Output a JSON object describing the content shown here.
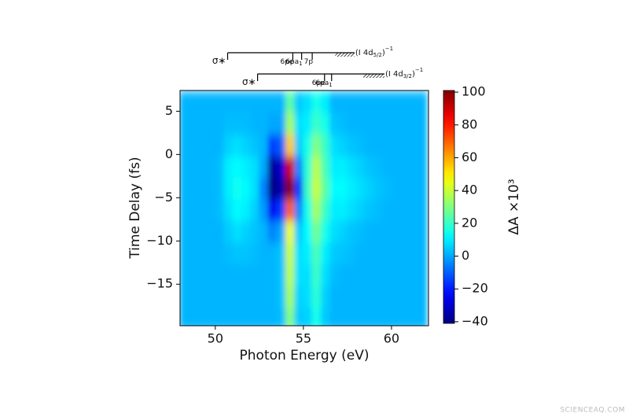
{
  "chart_data": {
    "type": "heatmap",
    "xlabel": "Photon Energy (eV)",
    "ylabel": "Time Delay (fs)",
    "colorbar_label": "ΔA ×10³",
    "colormap": "jet",
    "xlim": [
      48,
      62.1
    ],
    "ylim": [
      -19.8,
      7.4
    ],
    "xticks": [
      50,
      55,
      60
    ],
    "yticks": [
      5,
      0,
      {
        "value": -5,
        "label": "−5"
      },
      {
        "value": -10,
        "label": "−10"
      },
      {
        "value": -15,
        "label": "−15"
      }
    ],
    "clim": [
      -41,
      101
    ],
    "cticks": [
      {
        "value": -40,
        "label": "−40"
      },
      {
        "value": -20,
        "label": "−20"
      },
      0,
      20,
      40,
      60,
      80,
      100
    ],
    "x": [
      48.25,
      48.75,
      49.25,
      49.75,
      50.25,
      50.75,
      51.25,
      51.75,
      52.25,
      52.75,
      53.25,
      53.75,
      54.25,
      54.75,
      55.25,
      55.75,
      56.25,
      56.75,
      57.25,
      57.75,
      58.25,
      58.75,
      59.25,
      59.75,
      60.25,
      60.75,
      61.25,
      61.75
    ],
    "y": [
      6,
      3.5,
      1,
      -1.5,
      -4,
      -6.5,
      -9,
      -11.5,
      -14,
      -16.5,
      -19
    ],
    "z": [
      [
        2,
        2,
        2,
        2,
        2,
        2,
        2,
        2,
        2,
        2,
        2,
        2,
        25,
        5,
        8,
        15,
        10,
        2,
        2,
        2,
        2,
        2,
        2,
        2,
        2,
        2,
        2,
        2
      ],
      [
        2,
        2,
        2,
        2,
        2,
        3,
        3,
        3,
        2,
        2,
        0,
        0,
        35,
        8,
        10,
        20,
        15,
        4,
        3,
        2,
        2,
        2,
        2,
        2,
        2,
        2,
        2,
        2
      ],
      [
        2,
        2,
        2,
        2,
        2,
        6,
        8,
        6,
        4,
        2,
        -15,
        -10,
        55,
        5,
        15,
        30,
        20,
        8,
        6,
        4,
        3,
        2,
        2,
        2,
        2,
        2,
        2,
        2
      ],
      [
        2,
        2,
        2,
        2,
        3,
        10,
        12,
        10,
        8,
        0,
        -38,
        -30,
        90,
        -5,
        18,
        38,
        22,
        10,
        10,
        8,
        6,
        4,
        3,
        2,
        2,
        2,
        2,
        2
      ],
      [
        2,
        2,
        2,
        2,
        3,
        10,
        14,
        12,
        8,
        -5,
        -40,
        -35,
        100,
        -15,
        20,
        40,
        25,
        12,
        12,
        10,
        8,
        6,
        4,
        3,
        2,
        2,
        2,
        2
      ],
      [
        2,
        2,
        2,
        2,
        3,
        8,
        12,
        10,
        6,
        -2,
        -25,
        -15,
        70,
        -5,
        15,
        35,
        20,
        10,
        10,
        8,
        6,
        4,
        3,
        2,
        2,
        2,
        2,
        2
      ],
      [
        2,
        2,
        2,
        2,
        2,
        5,
        8,
        6,
        4,
        2,
        -5,
        0,
        45,
        5,
        12,
        28,
        15,
        8,
        6,
        4,
        3,
        2,
        2,
        2,
        2,
        2,
        2,
        2
      ],
      [
        2,
        2,
        2,
        2,
        2,
        3,
        4,
        4,
        3,
        2,
        2,
        4,
        40,
        8,
        10,
        22,
        10,
        5,
        4,
        3,
        2,
        2,
        2,
        2,
        2,
        2,
        2,
        2
      ],
      [
        2,
        2,
        2,
        2,
        2,
        2,
        2,
        2,
        2,
        2,
        2,
        4,
        38,
        8,
        8,
        20,
        8,
        3,
        2,
        2,
        2,
        2,
        2,
        2,
        2,
        2,
        2,
        2
      ],
      [
        2,
        2,
        2,
        2,
        2,
        2,
        2,
        2,
        2,
        2,
        2,
        4,
        35,
        6,
        8,
        18,
        6,
        2,
        2,
        2,
        2,
        2,
        2,
        2,
        2,
        2,
        2,
        2
      ],
      [
        2,
        2,
        2,
        2,
        2,
        2,
        2,
        2,
        2,
        2,
        2,
        3,
        30,
        5,
        6,
        15,
        5,
        2,
        2,
        2,
        2,
        2,
        2,
        2,
        2,
        2,
        2,
        2
      ]
    ],
    "levels": [
      {
        "markers": [
          {
            "label": "σ∗",
            "x": 50.7
          },
          {
            "label": "6pe",
            "x": 54.4
          },
          {
            "label": "6pa",
            "sub": "1",
            "x": 54.9
          },
          {
            "label": "7p",
            "x": 55.5
          }
        ],
        "edge": [
          56.8,
          57.9
        ],
        "edge_label": {
          "text": "(I 4d",
          "sub": "5/2",
          "tail": ")",
          "sup": "−1"
        }
      },
      {
        "markers": [
          {
            "label": "σ∗",
            "x": 52.4
          },
          {
            "label": "6pe",
            "x": 56.2
          },
          {
            "label": "6pa",
            "sub": "1",
            "x": 56.6
          }
        ],
        "edge": [
          58.4,
          59.6
        ],
        "edge_label": {
          "text": "(I 4d",
          "sub": "3/2",
          "tail": ")",
          "sup": "−1"
        }
      }
    ]
  },
  "watermark": "SCIENCEAQ.COM"
}
